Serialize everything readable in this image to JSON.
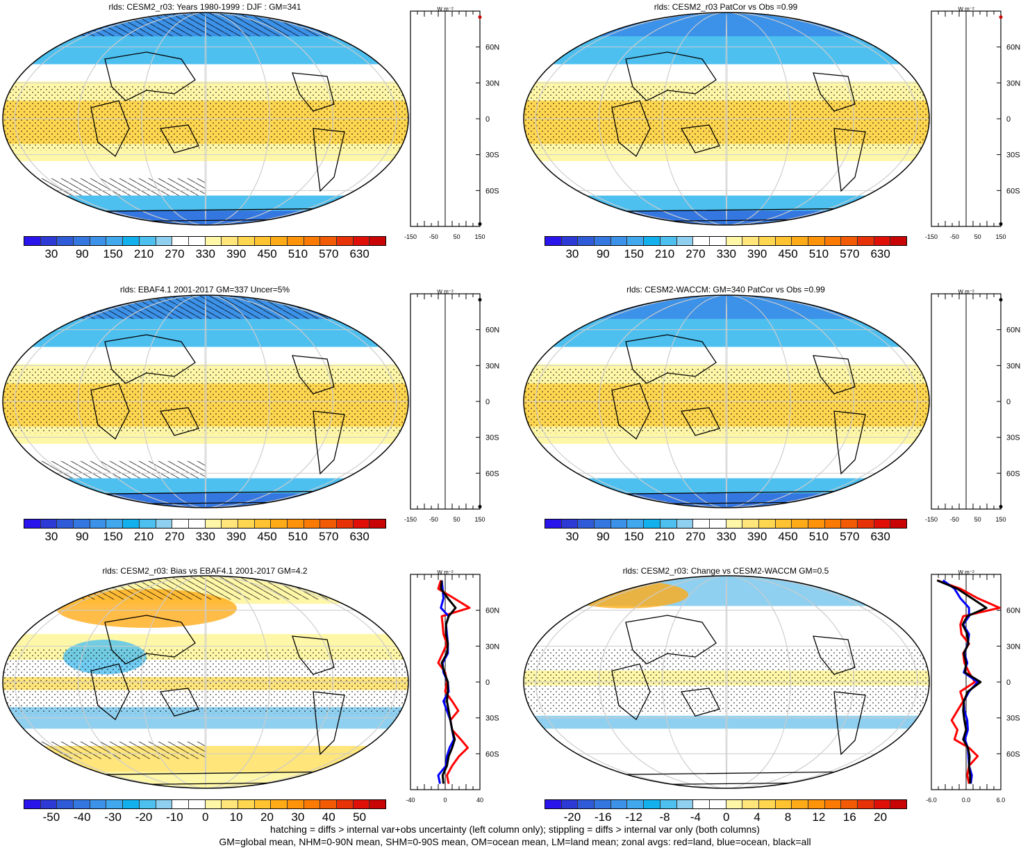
{
  "footer": {
    "line1": "hatching = diffs > internal var+obs uncertainty (left column only); stippling = diffs > internal var only (both columns)",
    "line2": "GM=global mean, NHM=0-90N mean, SHM=0-90S mean, OM=ocean mean, LM=land mean; zonal avgs: red=land, blue=ocean, black=all"
  },
  "colors": {
    "abs_scale": [
      "#2a14ec",
      "#2d3ad6",
      "#2f5bd8",
      "#3577e0",
      "#3c91e8",
      "#41a8ee",
      "#12b0ec",
      "#4ec0f0",
      "#8fd0f0",
      "#ffffff",
      "#ffffff",
      "#fff7a8",
      "#ffe57a",
      "#ffd650",
      "#ffc230",
      "#ffab18",
      "#ff930a",
      "#fb7a04",
      "#f25a04",
      "#e63206",
      "#e01008",
      "#c80404"
    ],
    "diff_scale": [
      "#2a14ec",
      "#2d3ad6",
      "#2f5bd8",
      "#3577e0",
      "#3c91e8",
      "#41a8ee",
      "#12b0ec",
      "#4ec0f0",
      "#8fd0f0",
      "#ffffff",
      "#ffffff",
      "#fff7a8",
      "#ffe57a",
      "#ffd650",
      "#ffc230",
      "#ffab18",
      "#ff930a",
      "#fb7a04",
      "#f25a04",
      "#e63206",
      "#e01008",
      "#c80404"
    ],
    "land_line": "#ff0000",
    "ocean_line": "#0000ff",
    "all_line": "#000000"
  },
  "chart_data": [
    {
      "type": "heatmap",
      "title": "rlds: CESM2_r03: Years 1980-1999 : DJF : GM=341",
      "colorbar_ticks": [
        "30",
        "90",
        "150",
        "210",
        "270",
        "330",
        "390",
        "450",
        "510",
        "570",
        "630"
      ],
      "zonal": {
        "unit_label": "W m⁻²",
        "xticks": [
          "-150",
          "-50",
          "50",
          "150"
        ],
        "lat_labels": [
          "60N",
          "30N",
          "0",
          "30S",
          "60S"
        ]
      }
    },
    {
      "type": "heatmap",
      "title": "rlds: CESM2_r03 PatCor vs Obs =0.99",
      "colorbar_ticks": [
        "30",
        "90",
        "150",
        "210",
        "270",
        "330",
        "390",
        "450",
        "510",
        "570",
        "630"
      ],
      "zonal": {
        "unit_label": "W m⁻²",
        "xticks": [
          "-150",
          "-50",
          "50",
          "150"
        ],
        "lat_labels": [
          "60N",
          "30N",
          "0",
          "30S",
          "60S"
        ]
      }
    },
    {
      "type": "heatmap",
      "title": "rlds: EBAF4.1 2001-2017 GM=337 Uncer=5%",
      "colorbar_ticks": [
        "30",
        "90",
        "150",
        "210",
        "270",
        "330",
        "390",
        "450",
        "510",
        "570",
        "630"
      ],
      "zonal": {
        "unit_label": "W m⁻²",
        "xticks": [
          "-150",
          "-50",
          "50",
          "150"
        ],
        "lat_labels": [
          "60N",
          "30N",
          "0",
          "30S",
          "60S"
        ]
      }
    },
    {
      "type": "heatmap",
      "title": "rlds: CESM2-WACCM: GM=340 PatCor vs Obs =0.99",
      "colorbar_ticks": [
        "30",
        "90",
        "150",
        "210",
        "270",
        "330",
        "390",
        "450",
        "510",
        "570",
        "630"
      ],
      "zonal": {
        "unit_label": "W m⁻²",
        "xticks": [
          "-150",
          "-50",
          "50",
          "150"
        ],
        "lat_labels": [
          "60N",
          "30N",
          "0",
          "30S",
          "60S"
        ]
      }
    },
    {
      "type": "heatmap",
      "title": "rlds: CESM2_r03: Bias vs EBAF4.1 2001-2017 GM=4.2",
      "colorbar_ticks": [
        "-50",
        "-40",
        "-30",
        "-20",
        "-10",
        "0",
        "10",
        "20",
        "30",
        "40",
        "50"
      ],
      "zonal": {
        "unit_label": "W m⁻²",
        "xticks": [
          "-40",
          "0",
          "40"
        ],
        "xlim": [
          -40,
          40
        ],
        "lat_labels": [
          "60N",
          "30N",
          "0",
          "30S",
          "60S"
        ],
        "lat": [
          85,
          78,
          70,
          62,
          55,
          48,
          40,
          32,
          24,
          16,
          8,
          0,
          -8,
          -16,
          -24,
          -32,
          -40,
          -48,
          -55,
          -62,
          -70,
          -78,
          -85
        ],
        "series": [
          {
            "name": "land",
            "values": [
              -5,
              -8,
              10,
              28,
              -4,
              -3,
              -2,
              2,
              -3,
              -8,
              0,
              2,
              0,
              8,
              15,
              6,
              8,
              18,
              26,
              16,
              8,
              2,
              4
            ]
          },
          {
            "name": "ocean",
            "values": [
              -4,
              -3,
              -2,
              -5,
              4,
              1,
              2,
              3,
              3,
              -3,
              -2,
              3,
              4,
              -2,
              2,
              6,
              8,
              10,
              5,
              2,
              1,
              -8,
              -6
            ]
          },
          {
            "name": "all",
            "values": [
              -4,
              -5,
              3,
              12,
              4,
              1,
              1,
              3,
              2,
              -4,
              -1,
              3,
              3,
              2,
              4,
              6,
              8,
              11,
              8,
              4,
              2,
              -3,
              -2
            ]
          }
        ]
      }
    },
    {
      "type": "heatmap",
      "title": "rlds: CESM2_r03: Change vs CESM2-WACCM GM=0.5",
      "colorbar_ticks": [
        "-20",
        "-16",
        "-12",
        "-8",
        "-4",
        "0",
        "4",
        "8",
        "12",
        "16",
        "20"
      ],
      "zonal": {
        "unit_label": "W m⁻²",
        "xticks": [
          "-6.0",
          "0.0",
          "6.0"
        ],
        "xlim": [
          -6,
          6
        ],
        "lat_labels": [
          "60N",
          "30N",
          "0",
          "30S",
          "60S"
        ],
        "lat": [
          85,
          78,
          70,
          62,
          55,
          48,
          40,
          32,
          24,
          16,
          8,
          0,
          -8,
          -16,
          -24,
          -32,
          -40,
          -48,
          -55,
          -62,
          -70,
          -78,
          -85
        ],
        "series": [
          {
            "name": "land",
            "values": [
              -5,
              -1,
              2,
              5.8,
              -0.5,
              -1,
              -0.8,
              0.5,
              -0.5,
              -0.3,
              0.5,
              1.5,
              -1,
              -0.5,
              -1.5,
              -2.5,
              -1.5,
              -2,
              0.5,
              2,
              0.5,
              0.2,
              0.5
            ]
          },
          {
            "name": "ocean",
            "values": [
              -4,
              -2,
              -1,
              0.5,
              0.5,
              -0.5,
              0.5,
              0.3,
              -0.3,
              0.2,
              -0.4,
              2,
              0.5,
              -0.4,
              -0.3,
              0.2,
              0.3,
              -0.2,
              0.3,
              0.4,
              0.5,
              1,
              0.8
            ]
          },
          {
            "name": "all",
            "values": [
              -5,
              -1.5,
              1,
              3.5,
              0.2,
              -0.6,
              0.2,
              0.4,
              -0.4,
              0,
              -0.2,
              2.5,
              0.3,
              -0.4,
              -0.5,
              -0.3,
              0,
              -0.5,
              0.3,
              0.6,
              0.5,
              0.7,
              0.7
            ]
          }
        ]
      }
    }
  ]
}
